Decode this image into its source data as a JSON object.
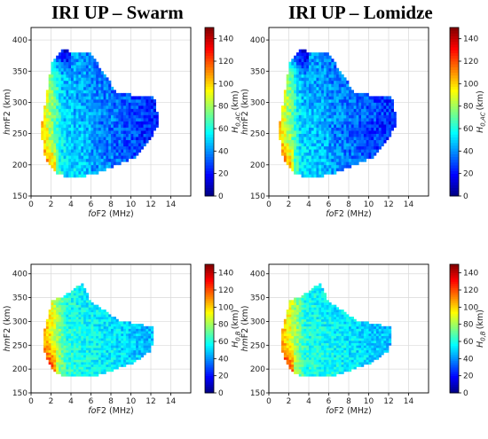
{
  "column_titles": [
    "IRI UP – Swarm",
    "IRI UP – Lomidze"
  ],
  "colormap": "jet",
  "chart_data": [
    {
      "type": "heatmap",
      "panel": "top-left",
      "xlabel_italic": "fo",
      "xlabel_rest": "F2 (MHz)",
      "ylabel_italic": "hm",
      "ylabel_rest": "F2 (km)",
      "cbar_label_main": "H",
      "cbar_label_sub": "0,AC",
      "cbar_label_unit": "(km)",
      "xlim": [
        0,
        16
      ],
      "ylim": [
        150,
        420
      ],
      "xticks": [
        "0",
        "2",
        "4",
        "6",
        "8",
        "10",
        "12",
        "14"
      ],
      "yticks": [
        "150",
        "200",
        "250",
        "300",
        "350",
        "400"
      ],
      "clim": [
        0,
        150
      ],
      "cbar_ticks": [
        "0",
        "20",
        "40",
        "60",
        "80",
        "100",
        "120",
        "140"
      ],
      "grid": true,
      "variant": "ac",
      "seed": 11,
      "outline_x": [
        1.0,
        2.1,
        3.0,
        5.9,
        8.6,
        12.3,
        12.9,
        11.9,
        10.5,
        6.2,
        3.6,
        2.3,
        1.3,
        1.0
      ],
      "outline_y": [
        255,
        367,
        383,
        381,
        315,
        308,
        270,
        240,
        213,
        183,
        181,
        188,
        216,
        255
      ]
    },
    {
      "type": "heatmap",
      "panel": "top-right",
      "xlabel_italic": "fo",
      "xlabel_rest": "F2 (MHz)",
      "ylabel_italic": "hm",
      "ylabel_rest": "F2 (km)",
      "cbar_label_main": "H",
      "cbar_label_sub": "0,AC",
      "cbar_label_unit": "(km)",
      "xlim": [
        0,
        16
      ],
      "ylim": [
        150,
        420
      ],
      "xticks": [
        "0",
        "2",
        "4",
        "6",
        "8",
        "10",
        "12",
        "14"
      ],
      "yticks": [
        "150",
        "200",
        "250",
        "300",
        "350",
        "400"
      ],
      "clim": [
        0,
        150
      ],
      "cbar_ticks": [
        "0",
        "20",
        "40",
        "60",
        "80",
        "100",
        "120",
        "140"
      ],
      "grid": true,
      "variant": "ac",
      "seed": 23,
      "outline_x": [
        1.0,
        2.1,
        3.0,
        5.9,
        8.6,
        12.3,
        12.9,
        11.9,
        10.5,
        6.2,
        3.6,
        2.3,
        1.3,
        1.0
      ],
      "outline_y": [
        255,
        367,
        383,
        381,
        315,
        308,
        270,
        240,
        213,
        183,
        181,
        188,
        216,
        255
      ]
    },
    {
      "type": "heatmap",
      "panel": "bottom-left",
      "xlabel_italic": "fo",
      "xlabel_rest": "F2 (MHz)",
      "ylabel_italic": "hm",
      "ylabel_rest": "F2 (km)",
      "cbar_label_main": "H",
      "cbar_label_sub": "0,B",
      "cbar_label_unit": "(km)",
      "xlim": [
        0,
        16
      ],
      "ylim": [
        150,
        420
      ],
      "xticks": [
        "0",
        "2",
        "4",
        "6",
        "8",
        "10",
        "12",
        "14"
      ],
      "yticks": [
        "150",
        "200",
        "250",
        "300",
        "350",
        "400"
      ],
      "clim": [
        0,
        150
      ],
      "cbar_ticks": [
        "0",
        "20",
        "40",
        "60",
        "80",
        "100",
        "120",
        "140"
      ],
      "grid": true,
      "variant": "b",
      "seed": 37,
      "outline_x": [
        1.2,
        2.1,
        3.2,
        5.2,
        6.0,
        8.9,
        12.2,
        12.1,
        10.3,
        6.2,
        3.6,
        2.4,
        1.4,
        1.2
      ],
      "outline_y": [
        270,
        344,
        352,
        381,
        341,
        302,
        288,
        240,
        213,
        183,
        183,
        192,
        228,
        270
      ]
    },
    {
      "type": "heatmap",
      "panel": "bottom-right",
      "xlabel_italic": "fo",
      "xlabel_rest": "F2 (MHz)",
      "ylabel_italic": "hm",
      "ylabel_rest": "F2 (km)",
      "cbar_label_main": "H",
      "cbar_label_sub": "0,B",
      "cbar_label_unit": "(km)",
      "xlim": [
        0,
        16
      ],
      "ylim": [
        150,
        420
      ],
      "xticks": [
        "0",
        "2",
        "4",
        "6",
        "8",
        "10",
        "12",
        "14"
      ],
      "yticks": [
        "150",
        "200",
        "250",
        "300",
        "350",
        "400"
      ],
      "clim": [
        0,
        150
      ],
      "cbar_ticks": [
        "0",
        "20",
        "40",
        "60",
        "80",
        "100",
        "120",
        "140"
      ],
      "grid": true,
      "variant": "b",
      "seed": 53,
      "outline_x": [
        1.2,
        2.1,
        3.2,
        5.2,
        6.0,
        8.9,
        12.2,
        12.1,
        10.3,
        6.2,
        3.6,
        2.4,
        1.4,
        1.2
      ],
      "outline_y": [
        270,
        344,
        352,
        381,
        341,
        302,
        288,
        240,
        213,
        183,
        183,
        192,
        228,
        270
      ]
    }
  ]
}
